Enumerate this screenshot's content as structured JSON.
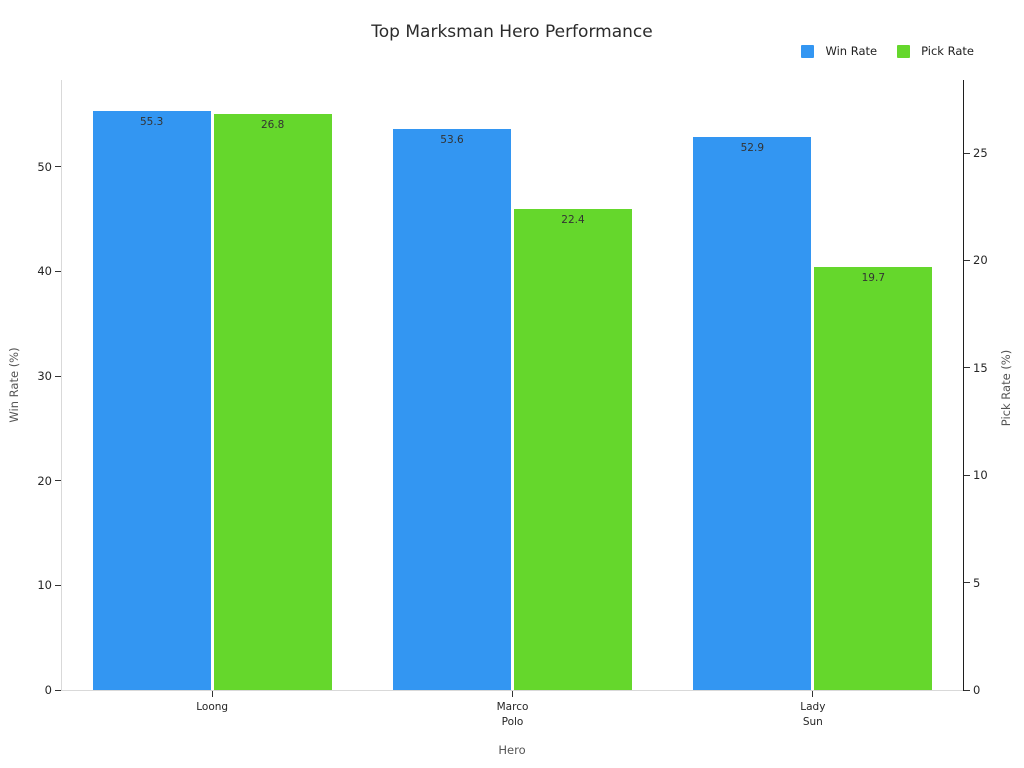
{
  "chart_data": {
    "type": "bar",
    "title": "Top Marksman Hero Performance",
    "xlabel": "Hero",
    "ylabel_left": "Win Rate (%)",
    "ylabel_right": "Pick Rate (%)",
    "categories": [
      "Loong",
      "Marco\nPolo",
      "Lady\nSun"
    ],
    "series": [
      {
        "name": "Win Rate",
        "axis": "left",
        "color": "#3396f2",
        "values": [
          55.3,
          53.6,
          52.9
        ]
      },
      {
        "name": "Pick Rate",
        "axis": "right",
        "color": "#65d72c",
        "values": [
          26.8,
          22.4,
          19.7
        ]
      }
    ],
    "left_ticks": [
      0,
      10,
      20,
      30,
      40,
      50
    ],
    "right_ticks": [
      0,
      5,
      10,
      15,
      20,
      25
    ],
    "ylim_left": [
      0,
      58.3
    ],
    "ylim_right": [
      0,
      28.4
    ],
    "grid": false,
    "legend_position": "top-right",
    "bar_label_decimals": 1
  }
}
